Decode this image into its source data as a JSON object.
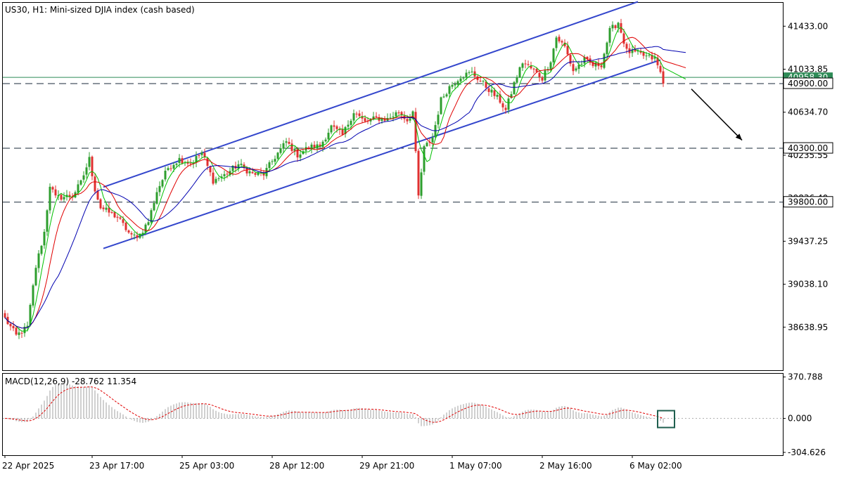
{
  "chart_data": [
    {
      "type": "candlestick",
      "title": "US30, H1:  Mini-sized DJIA index (cash based)",
      "symbol": "US30",
      "timeframe": "H1",
      "ylim": [
        38240,
        41650
      ],
      "y_ticks": [
        "41433.00",
        "41033.85",
        "40634.70",
        "40235.55",
        "39836.40",
        "39437.25",
        "39038.10",
        "38638.95"
      ],
      "x_labels": [
        {
          "label": "22 Apr 2025",
          "bar": 0
        },
        {
          "label": "23 Apr 17:00",
          "bar": 31
        },
        {
          "label": "25 Apr 03:00",
          "bar": 63
        },
        {
          "label": "28 Apr 12:00",
          "bar": 95
        },
        {
          "label": "29 Apr 21:00",
          "bar": 127
        },
        {
          "label": "1 May 07:00",
          "bar": 159
        },
        {
          "label": "2 May 16:00",
          "bar": 191
        },
        {
          "label": "6 May 02:00",
          "bar": 223
        }
      ],
      "price_anchors": [
        [
          0,
          38720
        ],
        [
          4,
          38560
        ],
        [
          8,
          38640
        ],
        [
          11,
          39200
        ],
        [
          14,
          39520
        ],
        [
          16,
          39960
        ],
        [
          18,
          39840
        ],
        [
          24,
          39860
        ],
        [
          27,
          39980
        ],
        [
          30,
          40200
        ],
        [
          32,
          39920
        ],
        [
          34,
          39750
        ],
        [
          40,
          39660
        ],
        [
          45,
          39480
        ],
        [
          48,
          39500
        ],
        [
          51,
          39620
        ],
        [
          54,
          39900
        ],
        [
          58,
          40120
        ],
        [
          62,
          40200
        ],
        [
          66,
          40160
        ],
        [
          70,
          40260
        ],
        [
          74,
          40000
        ],
        [
          78,
          40050
        ],
        [
          83,
          40150
        ],
        [
          88,
          40060
        ],
        [
          92,
          40060
        ],
        [
          96,
          40220
        ],
        [
          100,
          40360
        ],
        [
          104,
          40240
        ],
        [
          108,
          40310
        ],
        [
          112,
          40320
        ],
        [
          116,
          40500
        ],
        [
          120,
          40420
        ],
        [
          124,
          40640
        ],
        [
          128,
          40540
        ],
        [
          132,
          40580
        ],
        [
          136,
          40570
        ],
        [
          140,
          40640
        ],
        [
          143,
          40560
        ],
        [
          145,
          40640
        ],
        [
          147,
          39850
        ],
        [
          149,
          40300
        ],
        [
          152,
          40400
        ],
        [
          155,
          40750
        ],
        [
          158,
          40870
        ],
        [
          162,
          40970
        ],
        [
          166,
          41000
        ],
        [
          170,
          40900
        ],
        [
          173,
          40820
        ],
        [
          176,
          40740
        ],
        [
          178,
          40650
        ],
        [
          181,
          40900
        ],
        [
          184,
          41100
        ],
        [
          188,
          41020
        ],
        [
          191,
          40950
        ],
        [
          194,
          41120
        ],
        [
          196,
          41330
        ],
        [
          199,
          41240
        ],
        [
          202,
          41020
        ],
        [
          206,
          41120
        ],
        [
          209,
          41070
        ],
        [
          212,
          41080
        ],
        [
          215,
          41390
        ],
        [
          218,
          41470
        ],
        [
          221,
          41200
        ],
        [
          225,
          41180
        ],
        [
          228,
          41150
        ],
        [
          231,
          41130
        ],
        [
          233,
          41000
        ],
        [
          234,
          40900
        ]
      ],
      "moving_averages": [
        {
          "period": 5,
          "color": "#00c000"
        },
        {
          "period": 10,
          "color": "#e00000"
        },
        {
          "period": 20,
          "color": "#0000b0"
        }
      ],
      "up_color": "#2e9e2e",
      "down_color": "#e03030",
      "channel": {
        "color": "#3346cc",
        "upper": [
          [
            35,
            39940
          ],
          [
            225,
            41660
          ]
        ],
        "lower": [
          [
            35,
            39370
          ],
          [
            233,
            41120
          ]
        ]
      },
      "levels": [
        {
          "label": "40900.00",
          "value": 40900,
          "style": "dashed"
        },
        {
          "label": "40300.00",
          "value": 40300,
          "style": "dashed"
        },
        {
          "label": "39800.00",
          "value": 39800,
          "style": "dashed"
        }
      ],
      "current_price": {
        "label": "40958.30",
        "value": 40958,
        "color": "#2e8b57"
      },
      "projection_arrow": {
        "from": [
          244,
          40850
        ],
        "to": [
          262,
          40375
        ]
      }
    },
    {
      "type": "macd",
      "title": "MACD(12,26,9) -28.762 11.354",
      "ylim": [
        -330,
        400
      ],
      "y_ticks": [
        "370.788",
        "0.000",
        "-304.626"
      ],
      "tick_values": [
        370.788,
        0,
        -304.626
      ],
      "hist_color": "#a0a0a0",
      "signal_color": "#e00000",
      "highlight_box": {
        "bar": 235,
        "value": 0,
        "color": "#1f5f4f"
      }
    }
  ]
}
